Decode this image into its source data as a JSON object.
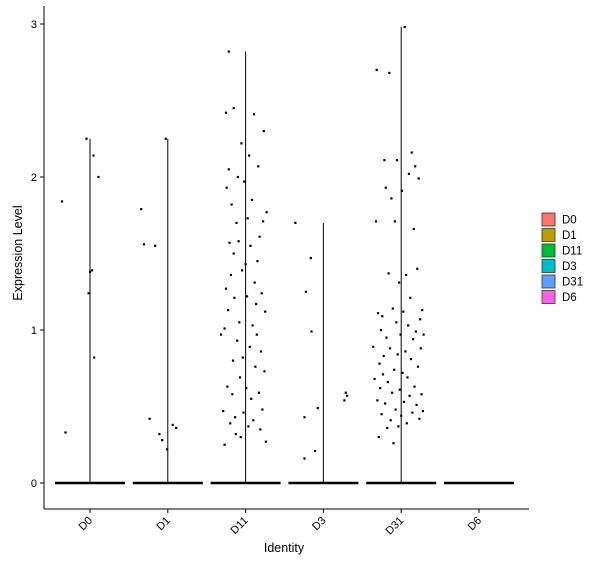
{
  "chart_data": {
    "type": "violin",
    "title": "",
    "xlabel": "Identity",
    "ylabel": "Expression Level",
    "ylim": [
      -0.17,
      3.1
    ],
    "yticks": [
      0,
      1,
      2,
      3
    ],
    "categories": [
      "D0",
      "D1",
      "D11",
      "D3",
      "D31",
      "D6"
    ],
    "legend": {
      "position": "right",
      "entries": [
        {
          "label": "D0",
          "color": "#F8766D"
        },
        {
          "label": "D1",
          "color": "#B79F00"
        },
        {
          "label": "D11",
          "color": "#00BA38"
        },
        {
          "label": "D3",
          "color": "#00BFC4"
        },
        {
          "label": "D31",
          "color": "#619CFF"
        },
        {
          "label": "D6",
          "color": "#F564E3"
        }
      ]
    },
    "max_values": {
      "D0": 2.25,
      "D1": 2.25,
      "D11": 2.82,
      "D3": 1.7,
      "D31": 2.98,
      "D6": 0
    },
    "points": {
      "D0": [
        {
          "x": -0.4,
          "y": 1.84
        },
        {
          "x": -0.35,
          "y": 0.33
        },
        {
          "x": -0.05,
          "y": 2.25
        },
        {
          "x": -0.02,
          "y": 1.24
        },
        {
          "x": 0.0,
          "y": 1.38
        },
        {
          "x": 0.03,
          "y": 1.39
        },
        {
          "x": 0.05,
          "y": 2.14
        },
        {
          "x": 0.06,
          "y": 0.82
        },
        {
          "x": 0.12,
          "y": 2.0
        }
      ],
      "D1": [
        {
          "x": -0.38,
          "y": 1.79
        },
        {
          "x": -0.34,
          "y": 1.56
        },
        {
          "x": -0.26,
          "y": 0.42
        },
        {
          "x": -0.18,
          "y": 1.55
        },
        {
          "x": -0.12,
          "y": 0.32
        },
        {
          "x": -0.08,
          "y": 0.28
        },
        {
          "x": -0.03,
          "y": 2.25
        },
        {
          "x": -0.01,
          "y": 0.22
        },
        {
          "x": 0.07,
          "y": 0.38
        },
        {
          "x": 0.12,
          "y": 0.36
        }
      ],
      "D11": [
        {
          "x": -0.35,
          "y": 0.97
        },
        {
          "x": -0.32,
          "y": 0.47
        },
        {
          "x": -0.3,
          "y": 1.01
        },
        {
          "x": -0.3,
          "y": 0.25
        },
        {
          "x": -0.28,
          "y": 2.42
        },
        {
          "x": -0.28,
          "y": 1.27
        },
        {
          "x": -0.27,
          "y": 1.93
        },
        {
          "x": -0.26,
          "y": 0.63
        },
        {
          "x": -0.25,
          "y": 1.13
        },
        {
          "x": -0.24,
          "y": 2.82
        },
        {
          "x": -0.24,
          "y": 2.05
        },
        {
          "x": -0.23,
          "y": 1.57
        },
        {
          "x": -0.22,
          "y": 0.39
        },
        {
          "x": -0.21,
          "y": 1.36
        },
        {
          "x": -0.2,
          "y": 1.82
        },
        {
          "x": -0.19,
          "y": 0.58
        },
        {
          "x": -0.18,
          "y": 0.8
        },
        {
          "x": -0.17,
          "y": 2.45
        },
        {
          "x": -0.17,
          "y": 1.5
        },
        {
          "x": -0.16,
          "y": 1.21
        },
        {
          "x": -0.15,
          "y": 0.43
        },
        {
          "x": -0.14,
          "y": 0.32
        },
        {
          "x": -0.13,
          "y": 1.7
        },
        {
          "x": -0.12,
          "y": 0.93
        },
        {
          "x": -0.11,
          "y": 2.0
        },
        {
          "x": -0.1,
          "y": 1.58
        },
        {
          "x": -0.09,
          "y": 1.05
        },
        {
          "x": -0.08,
          "y": 0.69
        },
        {
          "x": -0.07,
          "y": 0.3
        },
        {
          "x": -0.06,
          "y": 2.22
        },
        {
          "x": -0.05,
          "y": 1.39
        },
        {
          "x": -0.04,
          "y": 0.82
        },
        {
          "x": -0.03,
          "y": 0.46
        },
        {
          "x": -0.02,
          "y": 1.97
        },
        {
          "x": 0.0,
          "y": 1.43
        },
        {
          "x": 0.01,
          "y": 0.62
        },
        {
          "x": 0.02,
          "y": 1.22
        },
        {
          "x": 0.03,
          "y": 1.73
        },
        {
          "x": 0.04,
          "y": 0.37
        },
        {
          "x": 0.05,
          "y": 2.14
        },
        {
          "x": 0.06,
          "y": 0.89
        },
        {
          "x": 0.07,
          "y": 1.55
        },
        {
          "x": 0.08,
          "y": 0.55
        },
        {
          "x": 0.09,
          "y": 1.85
        },
        {
          "x": 0.1,
          "y": 1.03
        },
        {
          "x": 0.11,
          "y": 0.41
        },
        {
          "x": 0.12,
          "y": 2.41
        },
        {
          "x": 0.13,
          "y": 1.31
        },
        {
          "x": 0.14,
          "y": 0.76
        },
        {
          "x": 0.15,
          "y": 1.17
        },
        {
          "x": 0.16,
          "y": 0.97
        },
        {
          "x": 0.17,
          "y": 1.45
        },
        {
          "x": 0.18,
          "y": 2.07
        },
        {
          "x": 0.19,
          "y": 0.59
        },
        {
          "x": 0.2,
          "y": 1.61
        },
        {
          "x": 0.21,
          "y": 0.35
        },
        {
          "x": 0.22,
          "y": 0.86
        },
        {
          "x": 0.23,
          "y": 1.24
        },
        {
          "x": 0.24,
          "y": 0.48
        },
        {
          "x": 0.25,
          "y": 1.71
        },
        {
          "x": 0.26,
          "y": 2.3
        },
        {
          "x": 0.27,
          "y": 0.73
        },
        {
          "x": 0.28,
          "y": 1.12
        },
        {
          "x": 0.29,
          "y": 0.27
        },
        {
          "x": 0.3,
          "y": 1.77
        }
      ],
      "D3": [
        {
          "x": -0.4,
          "y": 1.7
        },
        {
          "x": -0.27,
          "y": 0.43
        },
        {
          "x": -0.27,
          "y": 0.16
        },
        {
          "x": -0.25,
          "y": 1.25
        },
        {
          "x": -0.18,
          "y": 1.47
        },
        {
          "x": -0.17,
          "y": 0.99
        },
        {
          "x": -0.12,
          "y": 0.21
        },
        {
          "x": -0.08,
          "y": 0.49
        },
        {
          "x": 0.3,
          "y": 0.54
        },
        {
          "x": 0.32,
          "y": 0.59
        },
        {
          "x": 0.34,
          "y": 0.57
        }
      ],
      "D31": [
        {
          "x": -0.4,
          "y": 0.89
        },
        {
          "x": -0.38,
          "y": 0.68
        },
        {
          "x": -0.36,
          "y": 1.71
        },
        {
          "x": -0.35,
          "y": 2.7
        },
        {
          "x": -0.34,
          "y": 0.54
        },
        {
          "x": -0.33,
          "y": 1.11
        },
        {
          "x": -0.32,
          "y": 0.3
        },
        {
          "x": -0.31,
          "y": 0.78
        },
        {
          "x": -0.3,
          "y": 0.62
        },
        {
          "x": -0.29,
          "y": 1.0
        },
        {
          "x": -0.28,
          "y": 0.45
        },
        {
          "x": -0.27,
          "y": 1.09
        },
        {
          "x": -0.26,
          "y": 0.71
        },
        {
          "x": -0.25,
          "y": 0.83
        },
        {
          "x": -0.24,
          "y": 2.11
        },
        {
          "x": -0.23,
          "y": 0.52
        },
        {
          "x": -0.22,
          "y": 1.93
        },
        {
          "x": -0.21,
          "y": 0.95
        },
        {
          "x": -0.2,
          "y": 0.36
        },
        {
          "x": -0.19,
          "y": 0.66
        },
        {
          "x": -0.18,
          "y": 1.37
        },
        {
          "x": -0.17,
          "y": 2.68
        },
        {
          "x": -0.16,
          "y": 0.88
        },
        {
          "x": -0.15,
          "y": 0.41
        },
        {
          "x": -0.14,
          "y": 1.86
        },
        {
          "x": -0.13,
          "y": 0.59
        },
        {
          "x": -0.12,
          "y": 1.14
        },
        {
          "x": -0.11,
          "y": 0.26
        },
        {
          "x": -0.1,
          "y": 0.74
        },
        {
          "x": -0.09,
          "y": 1.71
        },
        {
          "x": -0.08,
          "y": 0.48
        },
        {
          "x": -0.07,
          "y": 1.05
        },
        {
          "x": -0.06,
          "y": 2.11
        },
        {
          "x": -0.05,
          "y": 0.84
        },
        {
          "x": -0.04,
          "y": 0.37
        },
        {
          "x": -0.03,
          "y": 1.31
        },
        {
          "x": -0.02,
          "y": 0.61
        },
        {
          "x": -0.01,
          "y": 0.97
        },
        {
          "x": 0.0,
          "y": 0.44
        },
        {
          "x": 0.01,
          "y": 1.91
        },
        {
          "x": 0.02,
          "y": 0.72
        },
        {
          "x": 0.03,
          "y": 1.12
        },
        {
          "x": 0.04,
          "y": 0.53
        },
        {
          "x": 0.05,
          "y": 2.98
        },
        {
          "x": 0.06,
          "y": 0.86
        },
        {
          "x": 0.07,
          "y": 1.36
        },
        {
          "x": 0.08,
          "y": 0.39
        },
        {
          "x": 0.09,
          "y": 0.69
        },
        {
          "x": 0.1,
          "y": 1.03
        },
        {
          "x": 0.11,
          "y": 2.02
        },
        {
          "x": 0.12,
          "y": 0.57
        },
        {
          "x": 0.13,
          "y": 1.21
        },
        {
          "x": 0.14,
          "y": 0.81
        },
        {
          "x": 0.15,
          "y": 2.16
        },
        {
          "x": 0.16,
          "y": 0.46
        },
        {
          "x": 0.17,
          "y": 0.94
        },
        {
          "x": 0.18,
          "y": 1.66
        },
        {
          "x": 0.19,
          "y": 0.63
        },
        {
          "x": 0.2,
          "y": 2.07
        },
        {
          "x": 0.21,
          "y": 0.99
        },
        {
          "x": 0.22,
          "y": 0.51
        },
        {
          "x": 0.23,
          "y": 1.4
        },
        {
          "x": 0.24,
          "y": 0.76
        },
        {
          "x": 0.25,
          "y": 1.99
        },
        {
          "x": 0.26,
          "y": 0.42
        },
        {
          "x": 0.27,
          "y": 1.07
        },
        {
          "x": 0.28,
          "y": 0.88
        },
        {
          "x": 0.29,
          "y": 0.58
        },
        {
          "x": 0.3,
          "y": 1.13
        },
        {
          "x": 0.31,
          "y": 0.47
        },
        {
          "x": 0.32,
          "y": 0.97
        }
      ],
      "D6": []
    }
  }
}
